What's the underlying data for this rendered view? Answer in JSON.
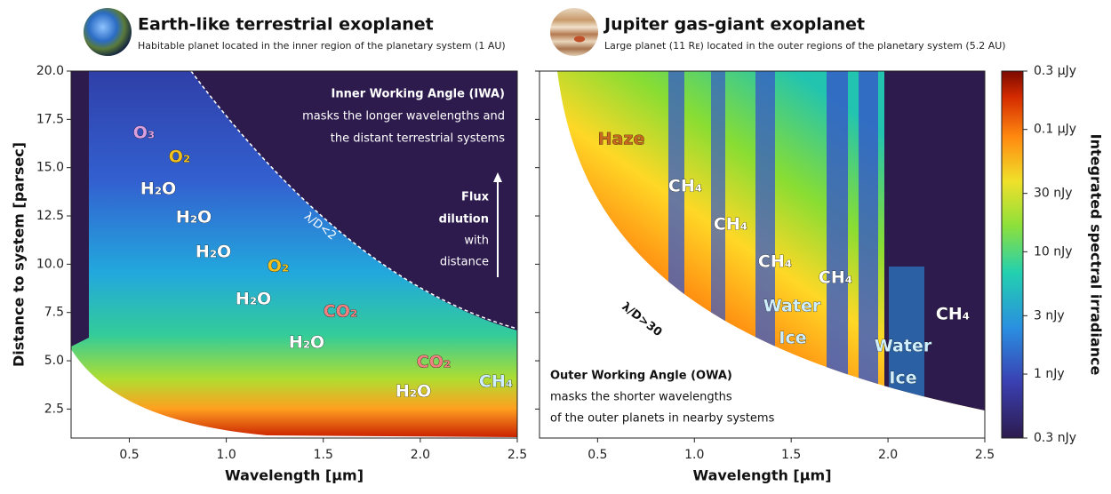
{
  "chart_data": [
    {
      "type": "heatmap",
      "title": "Earth-like terrestrial exoplanet",
      "subtitle": "Habitable planet located in the inner region of the planetary system (1 AU)",
      "x_label": "Wavelength [μm]",
      "y_label": "Distance to system [parsec]",
      "xlim": [
        0.2,
        2.5
      ],
      "xticks": [
        0.5,
        {
          "value": 1,
          "label": "1.0"
        },
        1.5,
        {
          "value": 2,
          "label": "2.0"
        },
        2.5
      ],
      "ylim": [
        1,
        20
      ],
      "yticks": [
        2.5,
        {
          "value": 5,
          "label": "5.0"
        },
        7.5,
        {
          "value": 10,
          "label": "10.0"
        },
        12.5,
        {
          "value": 15,
          "label": "15.0"
        },
        17.5,
        {
          "value": 20,
          "label": "20.0"
        }
      ],
      "annotations": [
        "O₃",
        "O₂",
        "H₂O",
        "H₂O",
        "H₂O",
        "O₂",
        "H₂O",
        "CO₂",
        "H₂O",
        "CO₂",
        "H₂O",
        "CH₄",
        "Inner Working Angle (IWA)",
        "masks the longer wavelengths and",
        "the distant terrestrial systems",
        "Flux",
        "dilution",
        "with",
        "distance",
        "λ/D<2"
      ]
    },
    {
      "type": "heatmap",
      "title": "Jupiter gas-giant exoplanet",
      "subtitle": "Large planet (11 Rᴇ) located in the outer regions of the planetary system (5.2 AU)",
      "x_label": "Wavelength [μm]",
      "xlim": [
        0.2,
        2.5
      ],
      "xticks": [
        0.5,
        {
          "value": 1,
          "label": "1.0"
        },
        1.5,
        {
          "value": 2,
          "label": "2.0"
        },
        2.5
      ],
      "ylim": [
        1,
        20
      ],
      "annotations": [
        "Haze",
        "CH₄",
        "CH₄",
        "CH₄",
        "CH₄",
        "Water",
        "Ice",
        "CH₄",
        "Water",
        "Ice",
        "λ/D>30",
        "Outer Working Angle (OWA)",
        "masks the shorter wavelengths",
        "of the outer planets in nearby systems"
      ]
    }
  ],
  "colorbar": {
    "label": "Integrated spectral irradiance",
    "log": true,
    "lim": [
      0.3,
      300
    ],
    "ticks": [
      {
        "value": 0.3,
        "label": "0.3 nJy"
      },
      {
        "value": 1,
        "label": "1 nJy"
      },
      {
        "value": 3,
        "label": "3 nJy"
      },
      {
        "value": 10,
        "label": "10 nJy"
      },
      {
        "value": 30,
        "label": "30 nJy"
      },
      {
        "value": 100,
        "label": "0.1 μJy"
      },
      {
        "value": 300,
        "label": "0.3 μJy"
      }
    ]
  }
}
